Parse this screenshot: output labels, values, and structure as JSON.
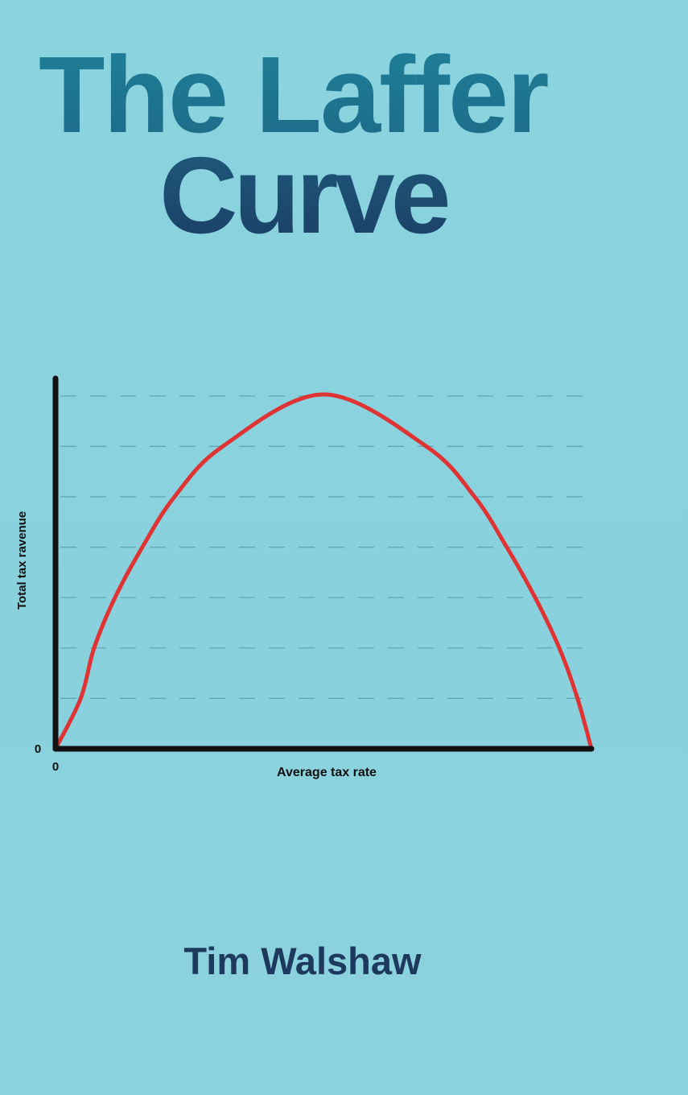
{
  "cover": {
    "title_line1": "The Laffer",
    "title_line2": "Curve",
    "author": "Tim Walshaw",
    "colors": {
      "background": "#8ad3df",
      "title_top": "#1f7f98",
      "title_bottom": "#1c3f66",
      "author": "#1d3a5e",
      "curve": "#e03434",
      "axes": "#111111"
    }
  },
  "chart_data": {
    "type": "line",
    "xlabel": "Average tax rate",
    "ylabel": "Total tax ravenue",
    "x_origin_label": "0",
    "y_origin_label": "0",
    "grid": "horizontal dashed",
    "series": [
      {
        "points": [
          [
            0,
            0
          ],
          [
            4.7,
            1
          ],
          [
            7.2,
            2
          ],
          [
            11.1,
            3
          ],
          [
            16.2,
            4
          ],
          [
            22.2,
            5
          ],
          [
            31.2,
            6
          ],
          [
            50,
            7.03
          ],
          [
            69.2,
            6
          ],
          [
            78.2,
            5
          ],
          [
            84.2,
            4
          ],
          [
            89.5,
            3
          ],
          [
            94,
            2
          ],
          [
            97.4,
            1
          ],
          [
            100,
            0
          ]
        ]
      }
    ],
    "gridlines_y": [
      1,
      2,
      3,
      4,
      5,
      6,
      7
    ],
    "xlim": [
      0,
      100
    ],
    "ylim": [
      0,
      7.5
    ]
  }
}
